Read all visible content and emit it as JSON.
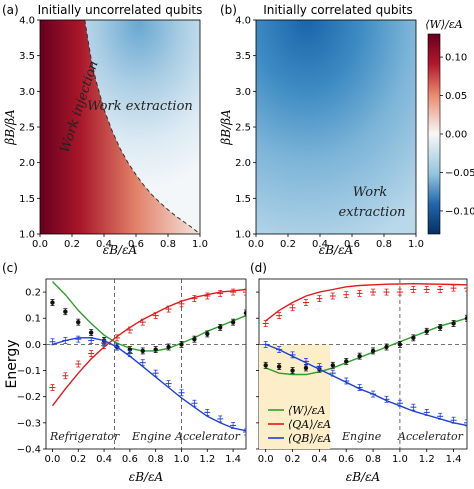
{
  "chart_data": [
    {
      "panel_label": "(a)",
      "type": "heatmap",
      "title": "Initially uncorrelated qubits",
      "xlabel": "εB/εA",
      "ylabel": "βB/βA",
      "xlim": [
        0.0,
        1.0
      ],
      "ylim": [
        1.0,
        4.0
      ],
      "xticks": [
        "0.0",
        "0.2",
        "0.4",
        "0.6",
        "0.8",
        "1.0"
      ],
      "yticks": [
        "1.0",
        "1.5",
        "2.0",
        "2.5",
        "3.0",
        "3.5",
        "4.0"
      ],
      "boundary_curve": {
        "style": "dashed",
        "x": [
          0.28,
          0.3,
          0.32,
          0.35,
          0.4,
          0.45,
          0.5,
          0.55,
          0.6,
          0.65,
          0.7,
          0.75,
          0.8,
          0.85,
          0.9,
          0.95,
          1.0
        ],
        "y": [
          4.0,
          3.72,
          3.45,
          3.15,
          2.75,
          2.45,
          2.2,
          2.0,
          1.83,
          1.68,
          1.55,
          1.44,
          1.34,
          1.25,
          1.17,
          1.09,
          1.0
        ]
      },
      "annotations": [
        "Work injection",
        "Work extraction"
      ]
    },
    {
      "panel_label": "(b)",
      "type": "heatmap",
      "title": "Initially correlated qubits",
      "xlabel": "εB/εA",
      "ylabel": "βB/βA",
      "xlim": [
        0.0,
        1.0
      ],
      "ylim": [
        1.0,
        4.0
      ],
      "xticks": [
        "0.0",
        "0.2",
        "0.4",
        "0.6",
        "0.8",
        "1.0"
      ],
      "yticks": [
        "1.0",
        "1.5",
        "2.0",
        "2.5",
        "3.0",
        "3.5",
        "4.0"
      ],
      "annotations": [
        "Work",
        "extraction"
      ],
      "colorbar": {
        "label": "⟨W⟩/εA",
        "range": [
          -0.13,
          0.13
        ],
        "ticks": [
          "0.10",
          "0.05",
          "0.00",
          "−0.05",
          "−0.10"
        ],
        "tick_values": [
          0.1,
          0.05,
          0.0,
          -0.05,
          -0.1
        ]
      }
    },
    {
      "panel_label": "(c)",
      "type": "line",
      "ylabel": "Energy",
      "xlabel": "εB/εA",
      "xlim": [
        -0.05,
        1.5
      ],
      "ylim": [
        -0.4,
        0.25
      ],
      "xticks": [
        "0.0",
        "0.2",
        "0.4",
        "0.6",
        "0.8",
        "1.0",
        "1.2",
        "1.4"
      ],
      "yticks": [
        "0.2",
        "0.1",
        "0.0",
        "−0.1",
        "−0.2",
        "−0.3",
        "−0.4"
      ],
      "vlines": [
        0.48,
        1.0
      ],
      "regions": [
        "Refrigerator",
        "Engine",
        "Accelerator"
      ],
      "series": [
        {
          "name": "⟨W⟩/εA",
          "color": "#2ca02c",
          "x": [
            0.0,
            0.1,
            0.2,
            0.3,
            0.4,
            0.5,
            0.6,
            0.7,
            0.8,
            0.9,
            1.0,
            1.1,
            1.2,
            1.3,
            1.4,
            1.5
          ],
          "values": [
            0.24,
            0.19,
            0.13,
            0.08,
            0.035,
            0.005,
            -0.015,
            -0.025,
            -0.025,
            -0.015,
            0.005,
            0.025,
            0.05,
            0.07,
            0.09,
            0.11
          ],
          "points_x": [
            0.0,
            0.1,
            0.2,
            0.3,
            0.4,
            0.5,
            0.6,
            0.7,
            0.8,
            0.9,
            1.0,
            1.1,
            1.2,
            1.3,
            1.4,
            1.5
          ],
          "points_y": [
            0.16,
            0.125,
            0.085,
            0.045,
            0.015,
            -0.01,
            -0.02,
            -0.025,
            -0.02,
            -0.01,
            0.0,
            0.02,
            0.04,
            0.065,
            0.085,
            0.12
          ]
        },
        {
          "name": "⟨QA⟩/εA",
          "color": "#e31a1c",
          "x": [
            0.0,
            0.1,
            0.2,
            0.3,
            0.4,
            0.5,
            0.6,
            0.7,
            0.8,
            0.9,
            1.0,
            1.1,
            1.2,
            1.3,
            1.4,
            1.5
          ],
          "values": [
            -0.235,
            -0.17,
            -0.11,
            -0.055,
            -0.01,
            0.03,
            0.065,
            0.095,
            0.12,
            0.145,
            0.165,
            0.18,
            0.19,
            0.2,
            0.205,
            0.21
          ],
          "points_x": [
            0.0,
            0.1,
            0.2,
            0.3,
            0.4,
            0.5,
            0.6,
            0.7,
            0.8,
            0.9,
            1.0,
            1.1,
            1.2,
            1.3,
            1.4,
            1.5
          ],
          "points_y": [
            -0.165,
            -0.12,
            -0.075,
            -0.035,
            -0.005,
            0.025,
            0.055,
            0.085,
            0.11,
            0.135,
            0.155,
            0.175,
            0.185,
            0.195,
            0.2,
            0.2
          ]
        },
        {
          "name": "⟨QB⟩/εA",
          "color": "#1f3fd6",
          "x": [
            0.0,
            0.1,
            0.2,
            0.3,
            0.4,
            0.5,
            0.6,
            0.7,
            0.8,
            0.9,
            1.0,
            1.1,
            1.2,
            1.3,
            1.4,
            1.5
          ],
          "values": [
            0.0,
            0.015,
            0.025,
            0.025,
            0.015,
            -0.01,
            -0.045,
            -0.085,
            -0.125,
            -0.165,
            -0.205,
            -0.24,
            -0.275,
            -0.3,
            -0.32,
            -0.33
          ],
          "points_x": [
            0.0,
            0.1,
            0.2,
            0.3,
            0.4,
            0.5,
            0.6,
            0.7,
            0.8,
            0.9,
            1.0,
            1.1,
            1.2,
            1.3,
            1.4,
            1.5
          ],
          "points_y": [
            0.01,
            0.015,
            0.02,
            0.015,
            0.005,
            -0.01,
            -0.035,
            -0.07,
            -0.11,
            -0.15,
            -0.185,
            -0.225,
            -0.26,
            -0.285,
            -0.31,
            -0.335
          ]
        }
      ]
    },
    {
      "panel_label": "(d)",
      "type": "line",
      "xlabel": "εB/εA",
      "xlim": [
        -0.05,
        1.5
      ],
      "ylim": [
        -0.4,
        0.25
      ],
      "xticks": [
        "0.0",
        "0.2",
        "0.4",
        "0.6",
        "0.8",
        "1.0",
        "1.2",
        "1.4"
      ],
      "vlines": [
        1.0
      ],
      "shaded_region": [
        -0.05,
        0.48
      ],
      "regions": [
        "Engine",
        "Accelerator"
      ],
      "legend": "lower-left",
      "series": [
        {
          "name": "⟨W⟩/εA",
          "color": "#2ca02c",
          "x": [
            0.0,
            0.1,
            0.2,
            0.3,
            0.4,
            0.5,
            0.6,
            0.7,
            0.8,
            0.9,
            1.0,
            1.1,
            1.2,
            1.3,
            1.4,
            1.5
          ],
          "values": [
            -0.09,
            -0.11,
            -0.115,
            -0.115,
            -0.105,
            -0.09,
            -0.07,
            -0.05,
            -0.03,
            -0.01,
            0.01,
            0.03,
            0.05,
            0.07,
            0.085,
            0.1
          ],
          "points_x": [
            0.0,
            0.1,
            0.2,
            0.3,
            0.4,
            0.5,
            0.6,
            0.7,
            0.8,
            0.9,
            1.0,
            1.1,
            1.2,
            1.3,
            1.4,
            1.5
          ],
          "points_y": [
            -0.08,
            -0.085,
            -0.1,
            -0.09,
            -0.095,
            -0.08,
            -0.065,
            -0.045,
            -0.025,
            -0.01,
            0.0,
            0.025,
            0.05,
            0.065,
            0.08,
            0.1
          ]
        },
        {
          "name": "⟨QA⟩/εA",
          "color": "#e31a1c",
          "x": [
            0.0,
            0.1,
            0.2,
            0.3,
            0.4,
            0.5,
            0.6,
            0.7,
            0.8,
            0.9,
            1.0,
            1.1,
            1.2,
            1.3,
            1.4,
            1.5
          ],
          "values": [
            0.09,
            0.13,
            0.16,
            0.185,
            0.2,
            0.21,
            0.22,
            0.225,
            0.228,
            0.23,
            0.231,
            0.232,
            0.231,
            0.23,
            0.229,
            0.228
          ],
          "points_x": [
            0.0,
            0.1,
            0.2,
            0.3,
            0.4,
            0.5,
            0.6,
            0.7,
            0.8,
            0.9,
            1.0,
            1.1,
            1.2,
            1.3,
            1.4,
            1.5
          ],
          "points_y": [
            0.08,
            0.11,
            0.14,
            0.16,
            0.175,
            0.185,
            0.19,
            0.195,
            0.2,
            0.2,
            0.2,
            0.21,
            0.21,
            0.21,
            0.215,
            0.215
          ]
        },
        {
          "name": "⟨QB⟩/εA",
          "color": "#1f3fd6",
          "x": [
            0.0,
            0.1,
            0.2,
            0.3,
            0.4,
            0.5,
            0.6,
            0.7,
            0.8,
            0.9,
            1.0,
            1.1,
            1.2,
            1.3,
            1.4,
            1.5
          ],
          "values": [
            0.0,
            -0.02,
            -0.045,
            -0.07,
            -0.095,
            -0.12,
            -0.145,
            -0.17,
            -0.19,
            -0.215,
            -0.235,
            -0.255,
            -0.27,
            -0.285,
            -0.3,
            -0.31
          ],
          "points_x": [
            0.0,
            0.1,
            0.2,
            0.3,
            0.4,
            0.5,
            0.6,
            0.7,
            0.8,
            0.9,
            1.0,
            1.1,
            1.2,
            1.3,
            1.4,
            1.5
          ],
          "points_y": [
            0.0,
            -0.02,
            -0.04,
            -0.065,
            -0.085,
            -0.11,
            -0.14,
            -0.165,
            -0.19,
            -0.21,
            -0.225,
            -0.24,
            -0.26,
            -0.275,
            -0.29,
            -0.3
          ]
        }
      ]
    }
  ]
}
